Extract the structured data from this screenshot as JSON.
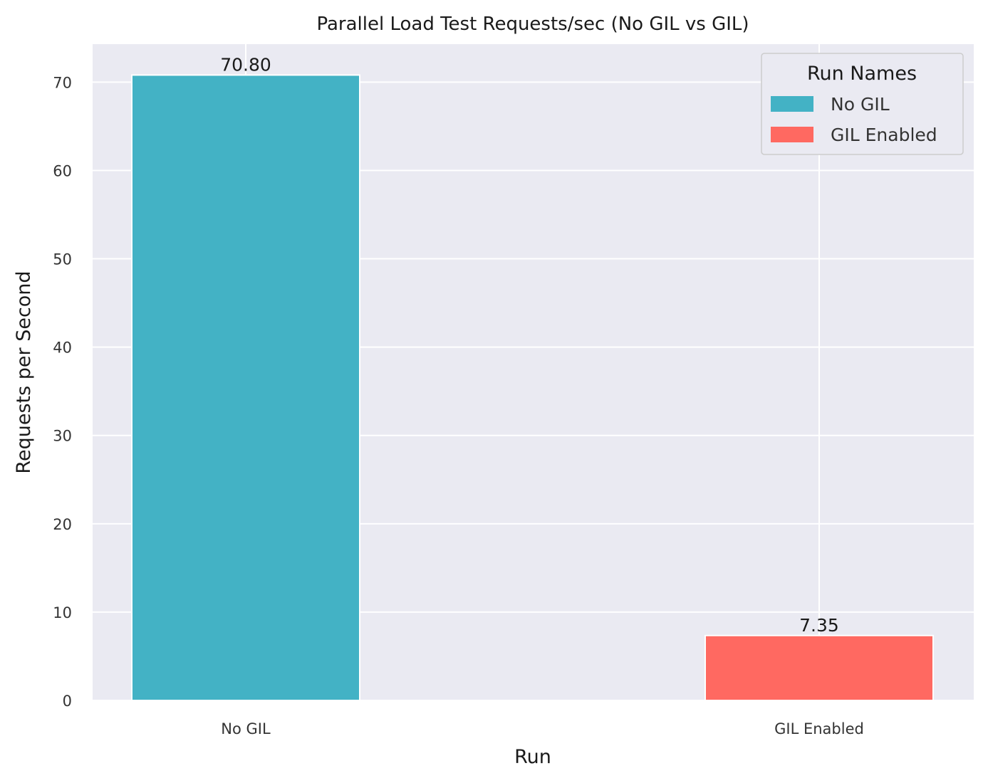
{
  "chart_data": {
    "type": "bar",
    "title": "Parallel Load Test Requests/sec (No GIL vs GIL)",
    "xlabel": "Run",
    "ylabel": "Requests per Second",
    "categories": [
      "No GIL",
      "GIL Enabled"
    ],
    "values": [
      70.8,
      7.35
    ],
    "value_labels": [
      "70.80",
      "7.35"
    ],
    "colors": [
      "#43b2c5",
      "#ff6961"
    ],
    "ylim": [
      0,
      74.3
    ],
    "yticks": [
      0,
      10,
      20,
      30,
      40,
      50,
      60,
      70
    ],
    "grid": true,
    "legend": {
      "title": "Run Names",
      "placement": "top-right",
      "entries": [
        "No GIL",
        "GIL Enabled"
      ]
    }
  }
}
